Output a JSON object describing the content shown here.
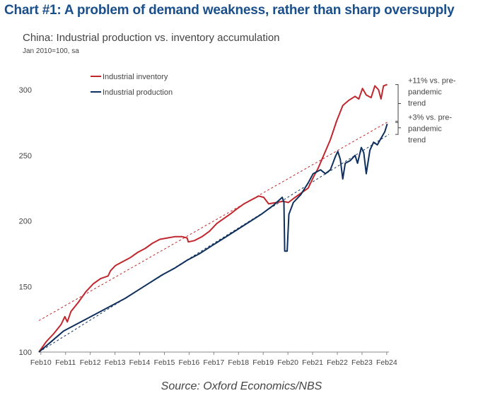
{
  "header": {
    "title": "Chart #1: A problem of demand weakness, rather than sharp oversupply",
    "subtitle": "China: Industrial production vs. inventory accumulation",
    "units": "Jan 2010=100, sa"
  },
  "footer": {
    "source": "Source: Oxford Economics/NBS"
  },
  "colors": {
    "inventory": "#c0272d",
    "production": "#0f2f5c",
    "axis": "#888888",
    "text": "#444444",
    "title": "#1a4f8b"
  },
  "chart_data": {
    "type": "line",
    "xlim": [
      2010.0,
      2024.17
    ],
    "ylim": [
      100,
      300
    ],
    "yticks": [
      100,
      150,
      200,
      250,
      300
    ],
    "xticks": [
      {
        "label": "Feb10",
        "x": 2010.08
      },
      {
        "label": "Feb11",
        "x": 2011.08
      },
      {
        "label": "Feb12",
        "x": 2012.08
      },
      {
        "label": "Feb13",
        "x": 2013.08
      },
      {
        "label": "Feb14",
        "x": 2014.08
      },
      {
        "label": "Feb15",
        "x": 2015.08
      },
      {
        "label": "Feb16",
        "x": 2016.08
      },
      {
        "label": "Feb17",
        "x": 2017.08
      },
      {
        "label": "Feb18",
        "x": 2018.08
      },
      {
        "label": "Feb19",
        "x": 2019.08
      },
      {
        "label": "Feb20",
        "x": 2020.08
      },
      {
        "label": "Feb21",
        "x": 2021.08
      },
      {
        "label": "Feb22",
        "x": 2022.08
      },
      {
        "label": "Feb23",
        "x": 2023.08
      },
      {
        "label": "Feb24",
        "x": 2024.08
      }
    ],
    "legend_position": "top-left",
    "series": [
      {
        "name": "Industrial inventory",
        "color": "#c0272d",
        "style": "solid",
        "points": [
          [
            2010.0,
            100
          ],
          [
            2010.3,
            108
          ],
          [
            2010.6,
            114
          ],
          [
            2010.9,
            121
          ],
          [
            2011.05,
            127
          ],
          [
            2011.15,
            123
          ],
          [
            2011.3,
            131
          ],
          [
            2011.6,
            138
          ],
          [
            2011.9,
            146
          ],
          [
            2012.2,
            152
          ],
          [
            2012.5,
            156
          ],
          [
            2012.8,
            158
          ],
          [
            2012.9,
            162
          ],
          [
            2013.1,
            166
          ],
          [
            2013.4,
            169
          ],
          [
            2013.7,
            172
          ],
          [
            2014.0,
            176
          ],
          [
            2014.3,
            179
          ],
          [
            2014.6,
            183
          ],
          [
            2014.9,
            186
          ],
          [
            2015.2,
            187
          ],
          [
            2015.5,
            188
          ],
          [
            2015.8,
            188
          ],
          [
            2016.0,
            187
          ],
          [
            2016.05,
            184
          ],
          [
            2016.3,
            185
          ],
          [
            2016.6,
            188
          ],
          [
            2016.9,
            192
          ],
          [
            2017.2,
            198
          ],
          [
            2017.5,
            202
          ],
          [
            2017.8,
            206
          ],
          [
            2018.0,
            209
          ],
          [
            2018.3,
            213
          ],
          [
            2018.6,
            216
          ],
          [
            2018.9,
            219
          ],
          [
            2019.1,
            218
          ],
          [
            2019.3,
            213
          ],
          [
            2019.6,
            214
          ],
          [
            2019.9,
            215
          ],
          [
            2020.1,
            214
          ],
          [
            2020.3,
            217
          ],
          [
            2020.6,
            221
          ],
          [
            2020.9,
            225
          ],
          [
            2021.1,
            233
          ],
          [
            2021.3,
            240
          ],
          [
            2021.55,
            251
          ],
          [
            2021.8,
            262
          ],
          [
            2022.05,
            276
          ],
          [
            2022.3,
            288
          ],
          [
            2022.55,
            292
          ],
          [
            2022.8,
            295
          ],
          [
            2022.95,
            293
          ],
          [
            2023.1,
            301
          ],
          [
            2023.25,
            296
          ],
          [
            2023.45,
            294
          ],
          [
            2023.6,
            303
          ],
          [
            2023.75,
            300
          ],
          [
            2023.85,
            293
          ],
          [
            2023.95,
            303
          ],
          [
            2024.1,
            304
          ]
        ]
      },
      {
        "name": "Industrial production",
        "color": "#0f2f5c",
        "style": "solid",
        "points": [
          [
            2010.0,
            100
          ],
          [
            2010.5,
            108
          ],
          [
            2011.0,
            116
          ],
          [
            2011.5,
            121
          ],
          [
            2012.0,
            126
          ],
          [
            2012.5,
            131
          ],
          [
            2013.0,
            136
          ],
          [
            2013.5,
            141
          ],
          [
            2014.0,
            147
          ],
          [
            2014.5,
            153
          ],
          [
            2015.0,
            159
          ],
          [
            2015.5,
            164
          ],
          [
            2016.0,
            170
          ],
          [
            2016.5,
            175
          ],
          [
            2017.0,
            181
          ],
          [
            2017.5,
            187
          ],
          [
            2018.0,
            193
          ],
          [
            2018.5,
            199
          ],
          [
            2019.0,
            205
          ],
          [
            2019.5,
            212
          ],
          [
            2019.85,
            218
          ],
          [
            2019.92,
            214
          ],
          [
            2019.95,
            177
          ],
          [
            2020.05,
            177
          ],
          [
            2020.12,
            205
          ],
          [
            2020.3,
            214
          ],
          [
            2020.6,
            220
          ],
          [
            2020.9,
            229
          ],
          [
            2021.1,
            236
          ],
          [
            2021.4,
            239
          ],
          [
            2021.6,
            236
          ],
          [
            2021.8,
            239
          ],
          [
            2022.0,
            249
          ],
          [
            2022.1,
            253
          ],
          [
            2022.2,
            247
          ],
          [
            2022.3,
            232
          ],
          [
            2022.4,
            244
          ],
          [
            2022.6,
            246
          ],
          [
            2022.8,
            250
          ],
          [
            2022.9,
            244
          ],
          [
            2023.05,
            256
          ],
          [
            2023.15,
            252
          ],
          [
            2023.25,
            236
          ],
          [
            2023.4,
            254
          ],
          [
            2023.55,
            260
          ],
          [
            2023.7,
            258
          ],
          [
            2023.85,
            263
          ],
          [
            2024.0,
            268
          ],
          [
            2024.1,
            274
          ]
        ]
      },
      {
        "name": "",
        "color": "#c0272d",
        "style": "dashed",
        "points": [
          [
            2010.0,
            124
          ],
          [
            2024.17,
            276
          ]
        ]
      },
      {
        "name": "",
        "color": "#0f2f5c",
        "style": "dashed",
        "points": [
          [
            2010.0,
            100
          ],
          [
            2024.17,
            266
          ]
        ]
      }
    ],
    "annotations": [
      {
        "lines": [
          "+11% vs. pre-",
          "pandemic",
          "trend"
        ],
        "y_top": 304,
        "y_bottom": 275
      },
      {
        "lines": [
          "+3% vs. pre-",
          "pandemic",
          "trend"
        ],
        "y_top": 276,
        "y_bottom": 266
      }
    ]
  }
}
